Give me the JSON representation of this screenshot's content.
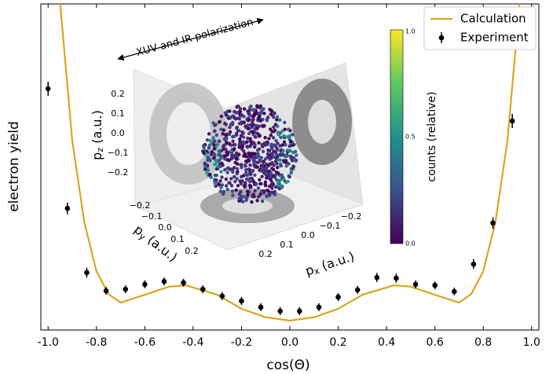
{
  "chart_data": {
    "type": "line",
    "xlabel": "cos(Θ)",
    "ylabel": "electron yield",
    "xlim": [
      -1.03,
      1.03
    ],
    "ylim": [
      0,
      1
    ],
    "xticks": [
      {
        "value": -1.0,
        "label": "-1.0"
      },
      -0.8,
      -0.6,
      -0.4,
      -0.2,
      {
        "value": 0.0,
        "label": "0.0"
      },
      0.2,
      0.4,
      0.6,
      0.8,
      {
        "value": 1.0,
        "label": "1.0"
      }
    ],
    "legend": "upper right",
    "series": [
      {
        "name": "Calculation",
        "color": "#daa520",
        "x": [
          -0.98,
          -0.95,
          -0.9,
          -0.85,
          -0.8,
          -0.75,
          -0.7,
          -0.6,
          -0.5,
          -0.43,
          -0.3,
          -0.2,
          -0.1,
          0.0,
          0.1,
          0.2,
          0.3,
          0.43,
          0.5,
          0.6,
          0.7,
          0.75,
          0.8,
          0.85,
          0.9,
          0.95,
          0.98
        ],
        "values": [
          1.3,
          1.0,
          0.58,
          0.33,
          0.18,
          0.11,
          0.084,
          0.108,
          0.133,
          0.137,
          0.108,
          0.065,
          0.039,
          0.029,
          0.039,
          0.065,
          0.108,
          0.137,
          0.133,
          0.108,
          0.084,
          0.11,
          0.18,
          0.33,
          0.58,
          1.0,
          1.3
        ]
      },
      {
        "name": "Experiment",
        "color": "#000000",
        "x": [
          -1.0,
          -0.92,
          -0.84,
          -0.76,
          -0.68,
          -0.6,
          -0.52,
          -0.44,
          -0.36,
          -0.28,
          -0.2,
          -0.12,
          -0.04,
          0.04,
          0.12,
          0.2,
          0.28,
          0.36,
          0.44,
          0.52,
          0.6,
          0.68,
          0.76,
          0.84,
          0.92
        ],
        "values": [
          0.74,
          0.373,
          0.176,
          0.12,
          0.125,
          0.14,
          0.149,
          0.145,
          0.125,
          0.104,
          0.089,
          0.07,
          0.058,
          0.058,
          0.07,
          0.101,
          0.123,
          0.161,
          0.159,
          0.14,
          0.137,
          0.118,
          0.202,
          0.328,
          0.641
        ],
        "errors": [
          0.022,
          0.018,
          0.015,
          0.012,
          0.012,
          0.012,
          0.012,
          0.012,
          0.012,
          0.012,
          0.012,
          0.012,
          0.012,
          0.012,
          0.012,
          0.012,
          0.012,
          0.014,
          0.014,
          0.012,
          0.012,
          0.012,
          0.015,
          0.018,
          0.022
        ]
      }
    ],
    "inset": {
      "arrow_label": "XUV and IR polarization",
      "pz": {
        "symbol": "p",
        "sub": "z",
        "unit": " (a.u.)",
        "ticks": [
          "0.2",
          "0.1",
          "0.0",
          "−0.1",
          "−0.2"
        ]
      },
      "py": {
        "symbol": "p",
        "sub": "y",
        "unit": " (a.u.)",
        "ticks": [
          "−0.2",
          "−0.1",
          "0.0",
          "0.1",
          "0.2"
        ]
      },
      "px": {
        "symbol": "p",
        "sub": "x",
        "unit": " (a.u.)",
        "ticks": [
          "0.2",
          "0.1",
          "0.0",
          "−0.1",
          "−0.2"
        ]
      },
      "colorbar": {
        "label": "counts (relative)",
        "ticks": [
          "1.0",
          "0.5",
          "0.0"
        ]
      }
    }
  }
}
